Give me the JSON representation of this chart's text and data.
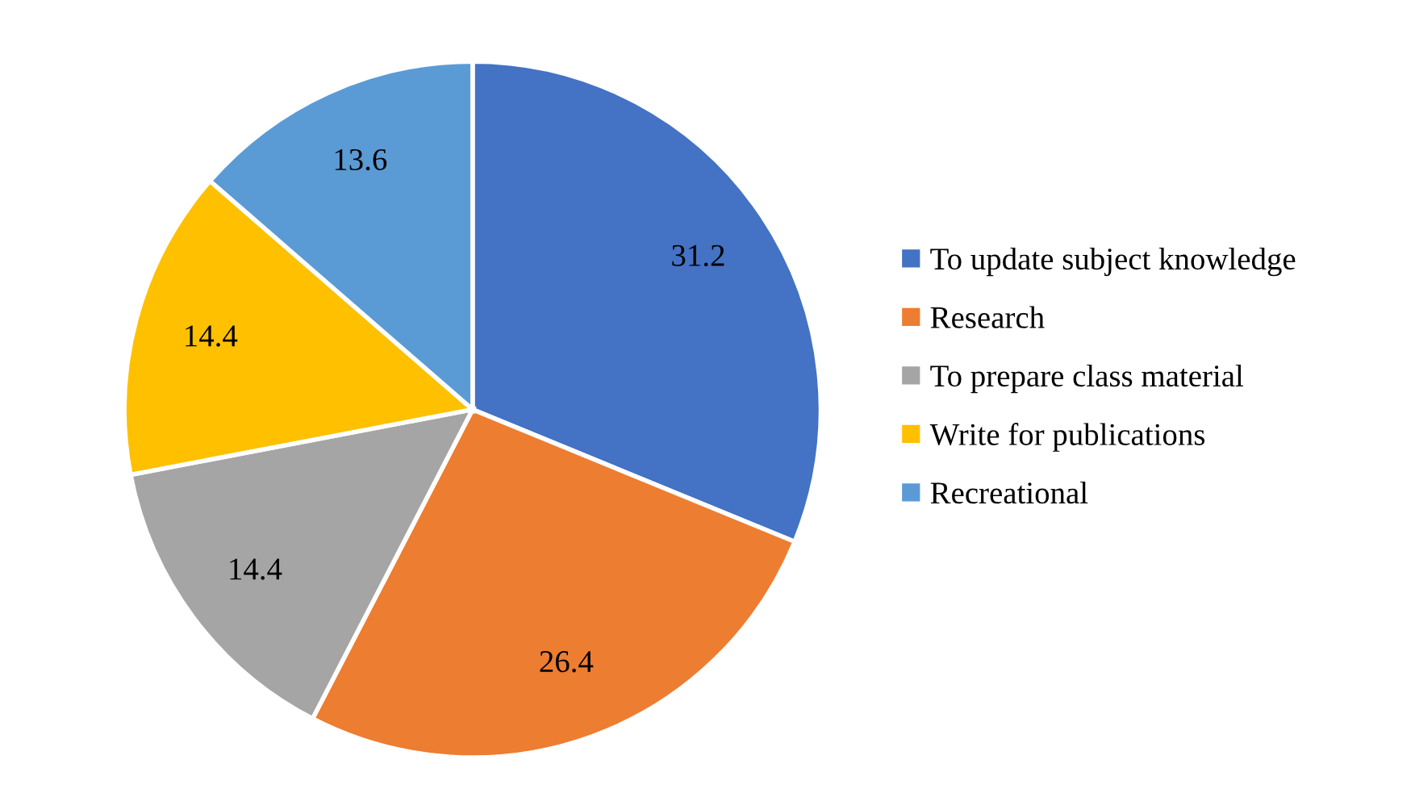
{
  "chart_data": {
    "type": "pie",
    "categories": [
      "To update subject knowledge",
      "Research",
      "To prepare class material",
      "Write for publications",
      "Recreational"
    ],
    "values": [
      31.2,
      26.4,
      14.4,
      14.4,
      13.6
    ],
    "colors": [
      "#4472c4",
      "#ed7d31",
      "#a5a5a5",
      "#ffc000",
      "#5b9bd5"
    ],
    "data_labels": true,
    "legend": "right"
  }
}
